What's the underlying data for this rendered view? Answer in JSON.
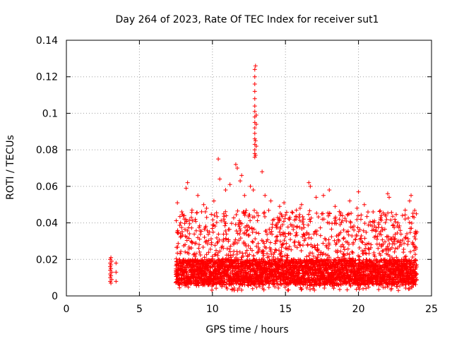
{
  "chart_data": {
    "type": "scatter",
    "title": "Day 264 of 2023, Rate Of TEC Index for receiver sut1",
    "xlabel": "GPS time / hours",
    "ylabel": "ROTI / TECUs",
    "xlim": [
      0,
      25
    ],
    "ylim": [
      0,
      0.14
    ],
    "xticks": [
      0,
      5,
      10,
      15,
      20,
      25
    ],
    "xtick_labels": [
      "0",
      "5",
      "10",
      "15",
      "20",
      "25"
    ],
    "yticks": [
      0,
      0.02,
      0.04,
      0.06,
      0.08,
      0.1,
      0.12,
      0.14
    ],
    "ytick_labels": [
      "0",
      "0.02",
      "0.04",
      "0.06",
      "0.08",
      "0.1",
      "0.12",
      "0.14"
    ],
    "grid": true,
    "marker": "+",
    "color": "#ff0000",
    "series": [
      {
        "points": [
          [
            3.0,
            0.008
          ],
          [
            3.0,
            0.01
          ],
          [
            3.0,
            0.012
          ],
          [
            3.0,
            0.014
          ],
          [
            3.0,
            0.016
          ],
          [
            3.0,
            0.018
          ],
          [
            3.0,
            0.02
          ],
          [
            3.05,
            0.007
          ],
          [
            3.05,
            0.011
          ],
          [
            3.05,
            0.015
          ],
          [
            3.05,
            0.017
          ],
          [
            3.05,
            0.021
          ],
          [
            3.1,
            0.009
          ],
          [
            3.1,
            0.013
          ],
          [
            3.1,
            0.019
          ],
          [
            3.4,
            0.008
          ],
          [
            3.4,
            0.013
          ],
          [
            3.4,
            0.018
          ],
          [
            7.6,
            0.051
          ],
          [
            7.9,
            0.046
          ],
          [
            8.2,
            0.059
          ],
          [
            8.3,
            0.062
          ],
          [
            8.6,
            0.047
          ],
          [
            9.0,
            0.055
          ],
          [
            9.4,
            0.05
          ],
          [
            9.6,
            0.048
          ],
          [
            10.1,
            0.052
          ],
          [
            10.4,
            0.075
          ],
          [
            10.5,
            0.064
          ],
          [
            10.9,
            0.058
          ],
          [
            11.2,
            0.061
          ],
          [
            11.6,
            0.072
          ],
          [
            11.7,
            0.07
          ],
          [
            11.9,
            0.063
          ],
          [
            12.0,
            0.066
          ],
          [
            12.2,
            0.055
          ],
          [
            12.6,
            0.06
          ],
          [
            12.8,
            0.058
          ],
          [
            12.9,
            0.076
          ],
          [
            12.9,
            0.078
          ],
          [
            12.9,
            0.08
          ],
          [
            12.9,
            0.083
          ],
          [
            12.9,
            0.086
          ],
          [
            12.9,
            0.089
          ],
          [
            12.9,
            0.092
          ],
          [
            12.9,
            0.095
          ],
          [
            12.9,
            0.098
          ],
          [
            12.9,
            0.101
          ],
          [
            12.9,
            0.104
          ],
          [
            12.9,
            0.108
          ],
          [
            12.9,
            0.112
          ],
          [
            12.9,
            0.116
          ],
          [
            12.9,
            0.12
          ],
          [
            12.9,
            0.124
          ],
          [
            12.95,
            0.126
          ],
          [
            12.95,
            0.085
          ],
          [
            12.95,
            0.077
          ],
          [
            13.0,
            0.082
          ],
          [
            13.0,
            0.094
          ],
          [
            13.0,
            0.099
          ],
          [
            13.4,
            0.068
          ],
          [
            13.6,
            0.055
          ],
          [
            14.0,
            0.052
          ],
          [
            14.6,
            0.049
          ],
          [
            14.9,
            0.051
          ],
          [
            15.3,
            0.043
          ],
          [
            16.0,
            0.048
          ],
          [
            16.1,
            0.05
          ],
          [
            16.6,
            0.062
          ],
          [
            16.7,
            0.06
          ],
          [
            17.1,
            0.054
          ],
          [
            17.6,
            0.055
          ],
          [
            18.0,
            0.058
          ],
          [
            18.4,
            0.049
          ],
          [
            18.9,
            0.044
          ],
          [
            19.4,
            0.052
          ],
          [
            19.9,
            0.048
          ],
          [
            20.0,
            0.057
          ],
          [
            20.4,
            0.05
          ],
          [
            21.0,
            0.046
          ],
          [
            21.5,
            0.042
          ],
          [
            22.0,
            0.056
          ],
          [
            22.1,
            0.054
          ],
          [
            22.7,
            0.04
          ],
          [
            23.2,
            0.047
          ],
          [
            23.5,
            0.052
          ],
          [
            23.6,
            0.055
          ],
          [
            23.8,
            0.043
          ],
          [
            24.0,
            0.035
          ]
        ]
      }
    ],
    "dense_band": {
      "x_start": 7.5,
      "x_end": 24.0,
      "y_low": 0.003,
      "y_high": 0.035,
      "y_core": 0.013
    }
  }
}
